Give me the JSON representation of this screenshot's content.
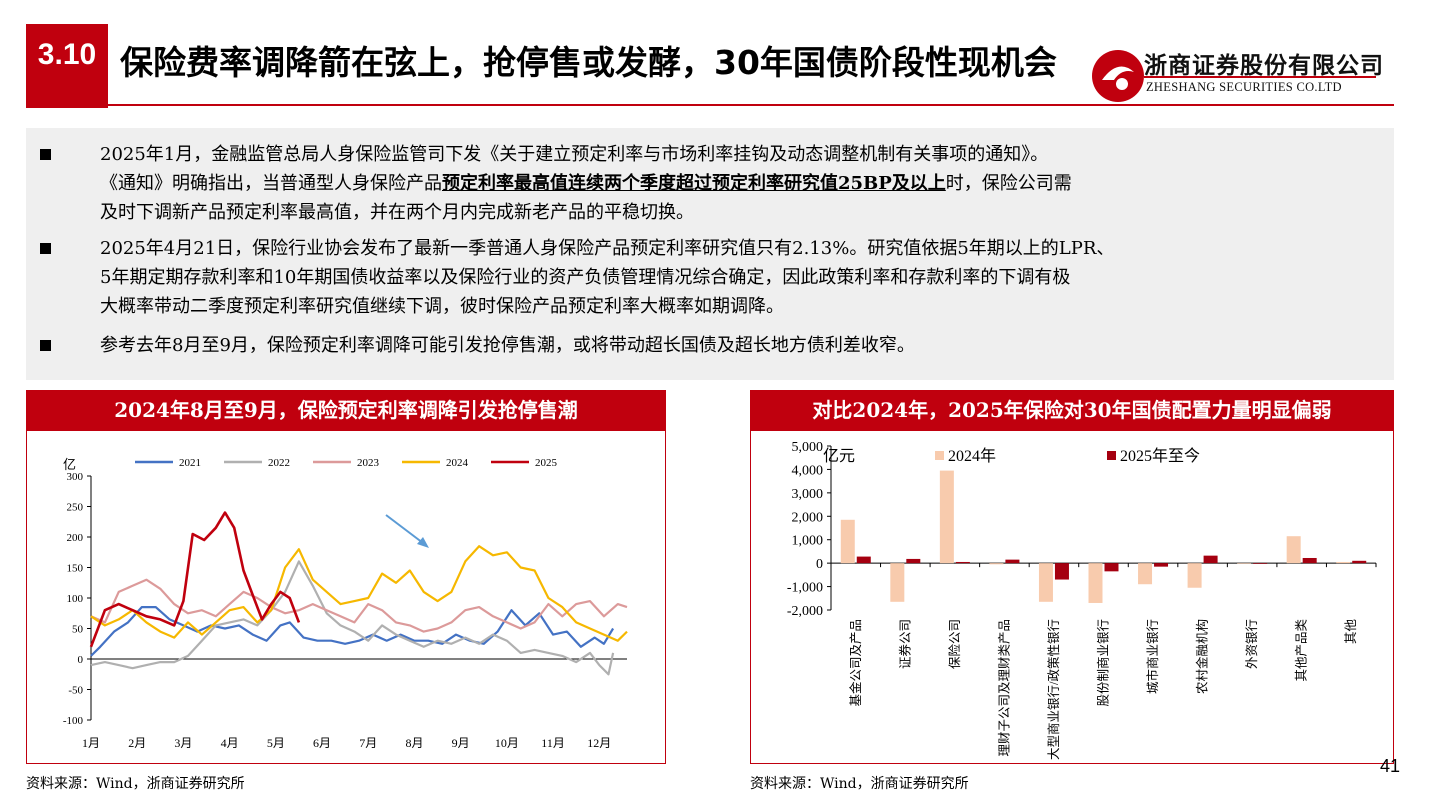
{
  "header": {
    "section_number": "3.10",
    "title": "保险费率调降箭在弦上，抢停售或发酵，30年国债阶段性现机会",
    "logo_cn": "浙商证券股份有限公司",
    "logo_en": "ZHESHANG SECURITIES CO.LTD",
    "accent_color": "#c0000e"
  },
  "bullets": [
    {
      "lines": [
        "2025年1月，金融监管总局人身保险监管司下发《关于建立预定利率与市场利率挂钩及动态调整机制有关事项的通知》。",
        "《通知》明确指出，当普通型人身保险产品",
        "时，保险公司需",
        "及时下调新产品预定利率最高值，并在两个月内完成新老产品的平稳切换。"
      ],
      "emphasis": "预定利率最高值连续两个季度超过预定利率研究值25BP及以上"
    },
    {
      "lines": [
        "2025年4月21日，保险行业协会发布了最新一季普通人身保险产品预定利率研究值只有2.13%。研究值依据5年期以上的LPR、",
        "5年期定期存款利率和10年期国债收益率以及保险行业的资产负债管理情况综合确定，因此政策利率和存款利率的下调有极",
        "大概率带动二季度预定利率研究值继续下调，彼时保险产品预定利率大概率如期调降。"
      ]
    },
    {
      "lines": [
        "参考去年8月至9月，保险预定利率调降可能引发抢停售潮，或将带动超长国债及超长地方债利差收窄。"
      ]
    }
  ],
  "left_panel": {
    "title": "2024年8月至9月，保险预定利率调降引发抢停售潮",
    "source": "资料来源：Wind，浙商证券研究所"
  },
  "right_panel": {
    "title": "对比2024年，2025年保险对30年国债配置力量明显偏弱",
    "source": "资料来源：Wind，浙商证券研究所"
  },
  "page_number": "41",
  "chart_data": [
    {
      "type": "line",
      "ylabel": "亿",
      "ylim": [
        -100,
        300
      ],
      "yticks": [
        -100,
        -50,
        0,
        50,
        100,
        150,
        200,
        250,
        300
      ],
      "x_month_labels": [
        "1月",
        "2月",
        "3月",
        "4月",
        "5月",
        "6月",
        "7月",
        "8月",
        "9月",
        "10月",
        "11月",
        "12月"
      ],
      "grid": false,
      "legend": "top",
      "annotation": "arrow pointing to 2024 series near Aug–Sep",
      "series": [
        {
          "name": "2021",
          "color": "#4472c4",
          "x_end": 12.3,
          "points": [
            [
              1,
              5
            ],
            [
              1.2,
              20
            ],
            [
              1.5,
              45
            ],
            [
              1.8,
              60
            ],
            [
              2.1,
              85
            ],
            [
              2.4,
              85
            ],
            [
              2.7,
              65
            ],
            [
              3.0,
              55
            ],
            [
              3.3,
              45
            ],
            [
              3.6,
              55
            ],
            [
              3.9,
              50
            ],
            [
              4.2,
              55
            ],
            [
              4.5,
              40
            ],
            [
              4.8,
              30
            ],
            [
              5.1,
              55
            ],
            [
              5.3,
              60
            ],
            [
              5.6,
              35
            ],
            [
              5.9,
              30
            ],
            [
              6.2,
              30
            ],
            [
              6.5,
              25
            ],
            [
              6.8,
              30
            ],
            [
              7.1,
              40
            ],
            [
              7.4,
              30
            ],
            [
              7.7,
              40
            ],
            [
              8.0,
              30
            ],
            [
              8.3,
              30
            ],
            [
              8.6,
              25
            ],
            [
              8.9,
              40
            ],
            [
              9.2,
              30
            ],
            [
              9.5,
              25
            ],
            [
              9.8,
              45
            ],
            [
              10.1,
              80
            ],
            [
              10.4,
              55
            ],
            [
              10.7,
              75
            ],
            [
              11.0,
              40
            ],
            [
              11.3,
              45
            ],
            [
              11.6,
              20
            ],
            [
              11.9,
              35
            ],
            [
              12.1,
              25
            ],
            [
              12.3,
              50
            ]
          ]
        },
        {
          "name": "2022",
          "color": "#b0b0b0",
          "x_end": 12.3,
          "points": [
            [
              1,
              -10
            ],
            [
              1.3,
              -5
            ],
            [
              1.6,
              -10
            ],
            [
              1.9,
              -15
            ],
            [
              2.2,
              -10
            ],
            [
              2.5,
              -5
            ],
            [
              2.8,
              -5
            ],
            [
              3.1,
              5
            ],
            [
              3.4,
              30
            ],
            [
              3.7,
              55
            ],
            [
              4.0,
              60
            ],
            [
              4.3,
              65
            ],
            [
              4.6,
              55
            ],
            [
              4.9,
              80
            ],
            [
              5.2,
              110
            ],
            [
              5.5,
              160
            ],
            [
              5.8,
              120
            ],
            [
              6.1,
              75
            ],
            [
              6.4,
              55
            ],
            [
              6.7,
              45
            ],
            [
              7.0,
              30
            ],
            [
              7.3,
              55
            ],
            [
              7.6,
              40
            ],
            [
              7.9,
              30
            ],
            [
              8.2,
              20
            ],
            [
              8.5,
              30
            ],
            [
              8.8,
              25
            ],
            [
              9.1,
              35
            ],
            [
              9.4,
              25
            ],
            [
              9.7,
              40
            ],
            [
              10.0,
              30
            ],
            [
              10.3,
              10
            ],
            [
              10.6,
              15
            ],
            [
              10.9,
              10
            ],
            [
              11.2,
              5
            ],
            [
              11.5,
              -5
            ],
            [
              11.8,
              10
            ],
            [
              12.0,
              -10
            ],
            [
              12.2,
              -25
            ],
            [
              12.3,
              10
            ]
          ]
        },
        {
          "name": "2023",
          "color": "#dc9a9a",
          "x_end": 12.6,
          "points": [
            [
              1,
              70
            ],
            [
              1.3,
              60
            ],
            [
              1.6,
              110
            ],
            [
              1.9,
              120
            ],
            [
              2.2,
              130
            ],
            [
              2.5,
              115
            ],
            [
              2.8,
              90
            ],
            [
              3.1,
              75
            ],
            [
              3.4,
              80
            ],
            [
              3.7,
              70
            ],
            [
              4.0,
              90
            ],
            [
              4.3,
              110
            ],
            [
              4.6,
              100
            ],
            [
              4.9,
              85
            ],
            [
              5.2,
              75
            ],
            [
              5.5,
              80
            ],
            [
              5.8,
              90
            ],
            [
              6.1,
              80
            ],
            [
              6.4,
              70
            ],
            [
              6.7,
              60
            ],
            [
              7.0,
              90
            ],
            [
              7.3,
              80
            ],
            [
              7.6,
              60
            ],
            [
              7.9,
              55
            ],
            [
              8.2,
              45
            ],
            [
              8.5,
              50
            ],
            [
              8.8,
              60
            ],
            [
              9.1,
              80
            ],
            [
              9.4,
              85
            ],
            [
              9.7,
              70
            ],
            [
              10.0,
              60
            ],
            [
              10.3,
              50
            ],
            [
              10.6,
              60
            ],
            [
              10.9,
              90
            ],
            [
              11.2,
              70
            ],
            [
              11.5,
              90
            ],
            [
              11.8,
              95
            ],
            [
              12.1,
              70
            ],
            [
              12.4,
              90
            ],
            [
              12.6,
              85
            ]
          ]
        },
        {
          "name": "2024",
          "color": "#f6b800",
          "x_end": 12.6,
          "points": [
            [
              1,
              70
            ],
            [
              1.3,
              55
            ],
            [
              1.6,
              65
            ],
            [
              1.9,
              80
            ],
            [
              2.2,
              60
            ],
            [
              2.5,
              45
            ],
            [
              2.8,
              35
            ],
            [
              3.1,
              60
            ],
            [
              3.4,
              40
            ],
            [
              3.7,
              60
            ],
            [
              4.0,
              80
            ],
            [
              4.3,
              85
            ],
            [
              4.6,
              60
            ],
            [
              4.9,
              80
            ],
            [
              5.2,
              150
            ],
            [
              5.5,
              180
            ],
            [
              5.8,
              130
            ],
            [
              6.1,
              110
            ],
            [
              6.4,
              90
            ],
            [
              6.7,
              95
            ],
            [
              7.0,
              100
            ],
            [
              7.3,
              140
            ],
            [
              7.6,
              125
            ],
            [
              7.9,
              145
            ],
            [
              8.2,
              110
            ],
            [
              8.5,
              95
            ],
            [
              8.8,
              110
            ],
            [
              9.1,
              160
            ],
            [
              9.4,
              185
            ],
            [
              9.7,
              170
            ],
            [
              10.0,
              175
            ],
            [
              10.3,
              150
            ],
            [
              10.6,
              145
            ],
            [
              10.9,
              100
            ],
            [
              11.2,
              85
            ],
            [
              11.5,
              60
            ],
            [
              11.8,
              50
            ],
            [
              12.1,
              40
            ],
            [
              12.4,
              30
            ],
            [
              12.6,
              45
            ]
          ]
        },
        {
          "name": "2025",
          "color": "#c0000e",
          "x_end": 5.5,
          "points": [
            [
              1,
              20
            ],
            [
              1.3,
              80
            ],
            [
              1.6,
              90
            ],
            [
              1.9,
              80
            ],
            [
              2.2,
              70
            ],
            [
              2.5,
              65
            ],
            [
              2.8,
              55
            ],
            [
              3.0,
              95
            ],
            [
              3.2,
              205
            ],
            [
              3.45,
              195
            ],
            [
              3.7,
              215
            ],
            [
              3.9,
              240
            ],
            [
              4.1,
              215
            ],
            [
              4.3,
              145
            ],
            [
              4.5,
              105
            ],
            [
              4.7,
              65
            ],
            [
              4.9,
              90
            ],
            [
              5.1,
              110
            ],
            [
              5.3,
              100
            ],
            [
              5.5,
              60
            ]
          ]
        }
      ]
    },
    {
      "type": "bar",
      "ylabel": "亿元",
      "ylim": [
        -2000,
        5000
      ],
      "yticks": [
        -2000,
        -1000,
        0,
        1000,
        2000,
        3000,
        4000,
        5000
      ],
      "ytick_labels": [
        "-2,000",
        "-1,000",
        "0",
        "1,000",
        "2,000",
        "3,000",
        "4,000",
        "5,000"
      ],
      "legend": "top",
      "grid": false,
      "categories": [
        "基金公司及产品",
        "证券公司",
        "保险公司",
        "理财子公司及理财类产品",
        "大型商业银行/政策性银行",
        "股份制商业银行",
        "城市商业银行",
        "农村金融机构",
        "外资银行",
        "其他产品类",
        "其他"
      ],
      "series": [
        {
          "name": "2024年",
          "color": "#f8cbad",
          "values": [
            1850,
            -1650,
            3950,
            -50,
            -1650,
            -1700,
            -900,
            -1050,
            -20,
            1150,
            50
          ]
        },
        {
          "name": "2025年至今",
          "color": "#a50010",
          "values": [
            280,
            180,
            50,
            150,
            -700,
            -350,
            -150,
            320,
            -30,
            220,
            100
          ]
        }
      ]
    }
  ]
}
